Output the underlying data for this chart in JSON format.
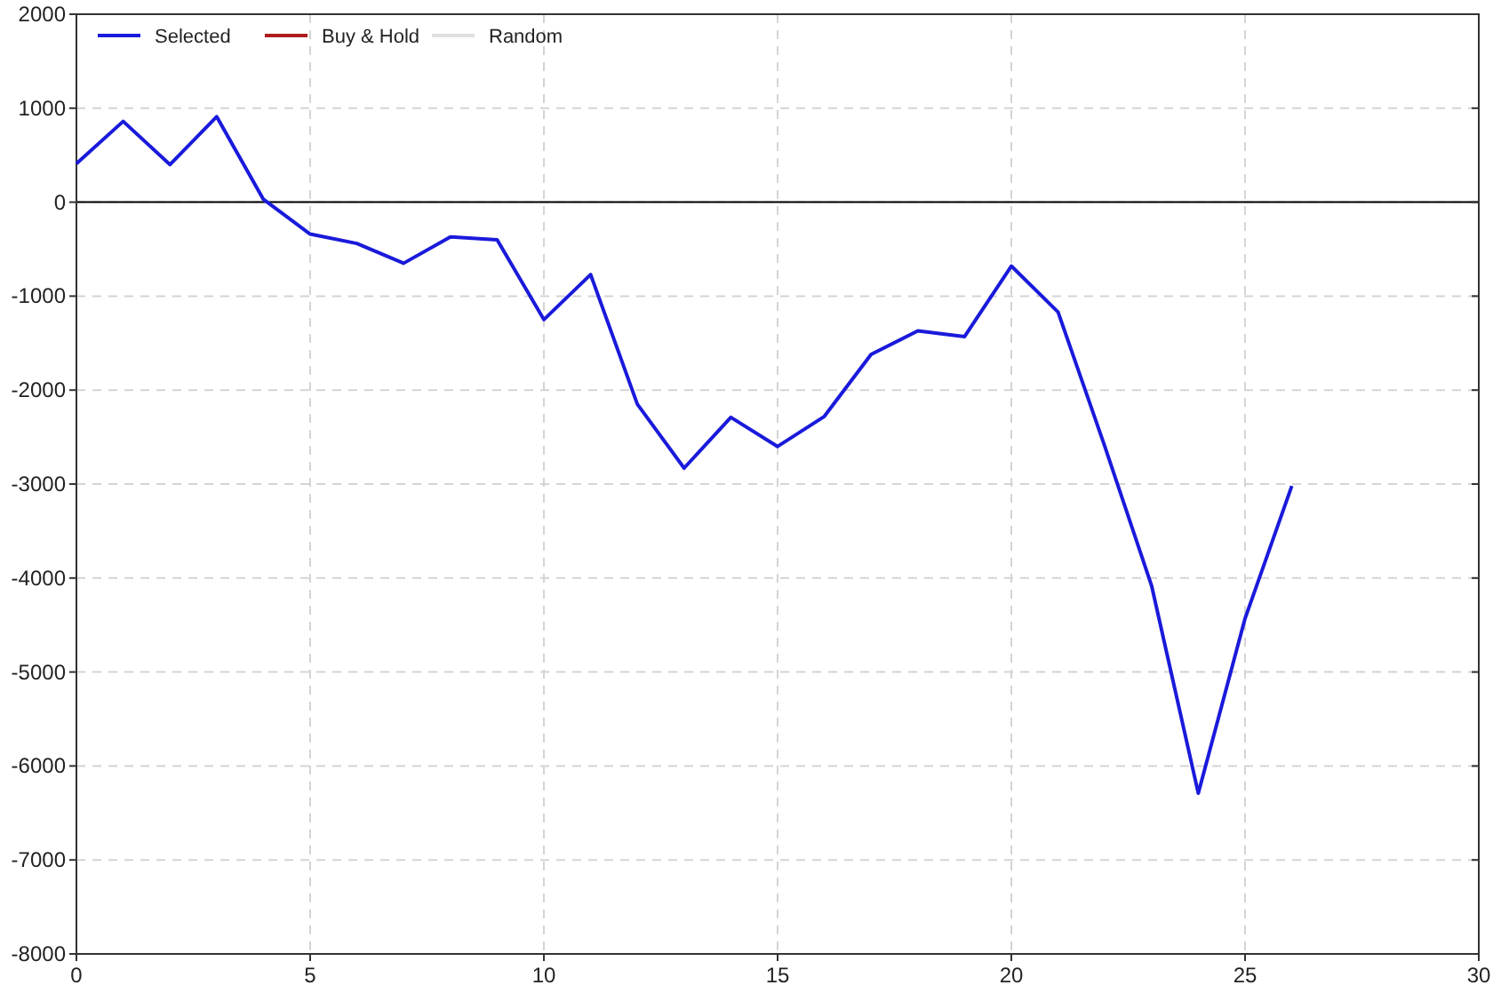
{
  "chart_data": {
    "type": "line",
    "x": [
      0,
      1,
      2,
      3,
      4,
      5,
      6,
      7,
      8,
      9,
      10,
      11,
      12,
      13,
      14,
      15,
      16,
      17,
      18,
      19,
      20,
      21,
      22,
      23,
      24,
      25,
      26
    ],
    "series": [
      {
        "name": "Selected",
        "color": "#1a1adb",
        "values": [
          410,
          860,
          400,
          910,
          30,
          -340,
          -440,
          -650,
          -370,
          -400,
          -1250,
          -770,
          -2150,
          -2830,
          -2290,
          -2600,
          -2280,
          -1620,
          -1370,
          -1430,
          -680,
          -1170,
          -2600,
          -4080,
          -6290,
          -4430,
          -3020
        ]
      },
      {
        "name": "Buy & Hold",
        "color": "#b01c1c",
        "values": [
          null,
          null,
          null,
          null,
          null,
          null,
          null,
          null,
          null,
          null,
          null,
          null,
          null,
          null,
          null,
          null,
          null,
          null,
          null,
          null,
          null,
          null,
          null,
          null,
          null,
          null,
          null
        ]
      },
      {
        "name": "Random",
        "color": "#e0e0e0",
        "values": [
          null,
          null,
          null,
          null,
          null,
          null,
          null,
          null,
          null,
          null,
          null,
          null,
          null,
          null,
          null,
          null,
          null,
          null,
          null,
          null,
          null,
          null,
          null,
          null,
          null,
          null,
          null
        ]
      }
    ],
    "xlim": [
      0,
      30
    ],
    "xticks": [
      0,
      5,
      10,
      15,
      20,
      25,
      30
    ],
    "ylim": [
      -8000,
      2000
    ],
    "yticks": [
      -8000,
      -7000,
      -6000,
      -5000,
      -4000,
      -3000,
      -2000,
      -1000,
      0,
      1000,
      2000
    ],
    "grid": true,
    "legend": "top left",
    "line_style": "solid",
    "marker": "none",
    "ref_lines": [
      {
        "axis": "y",
        "value": 0,
        "color": "#000000"
      }
    ]
  }
}
